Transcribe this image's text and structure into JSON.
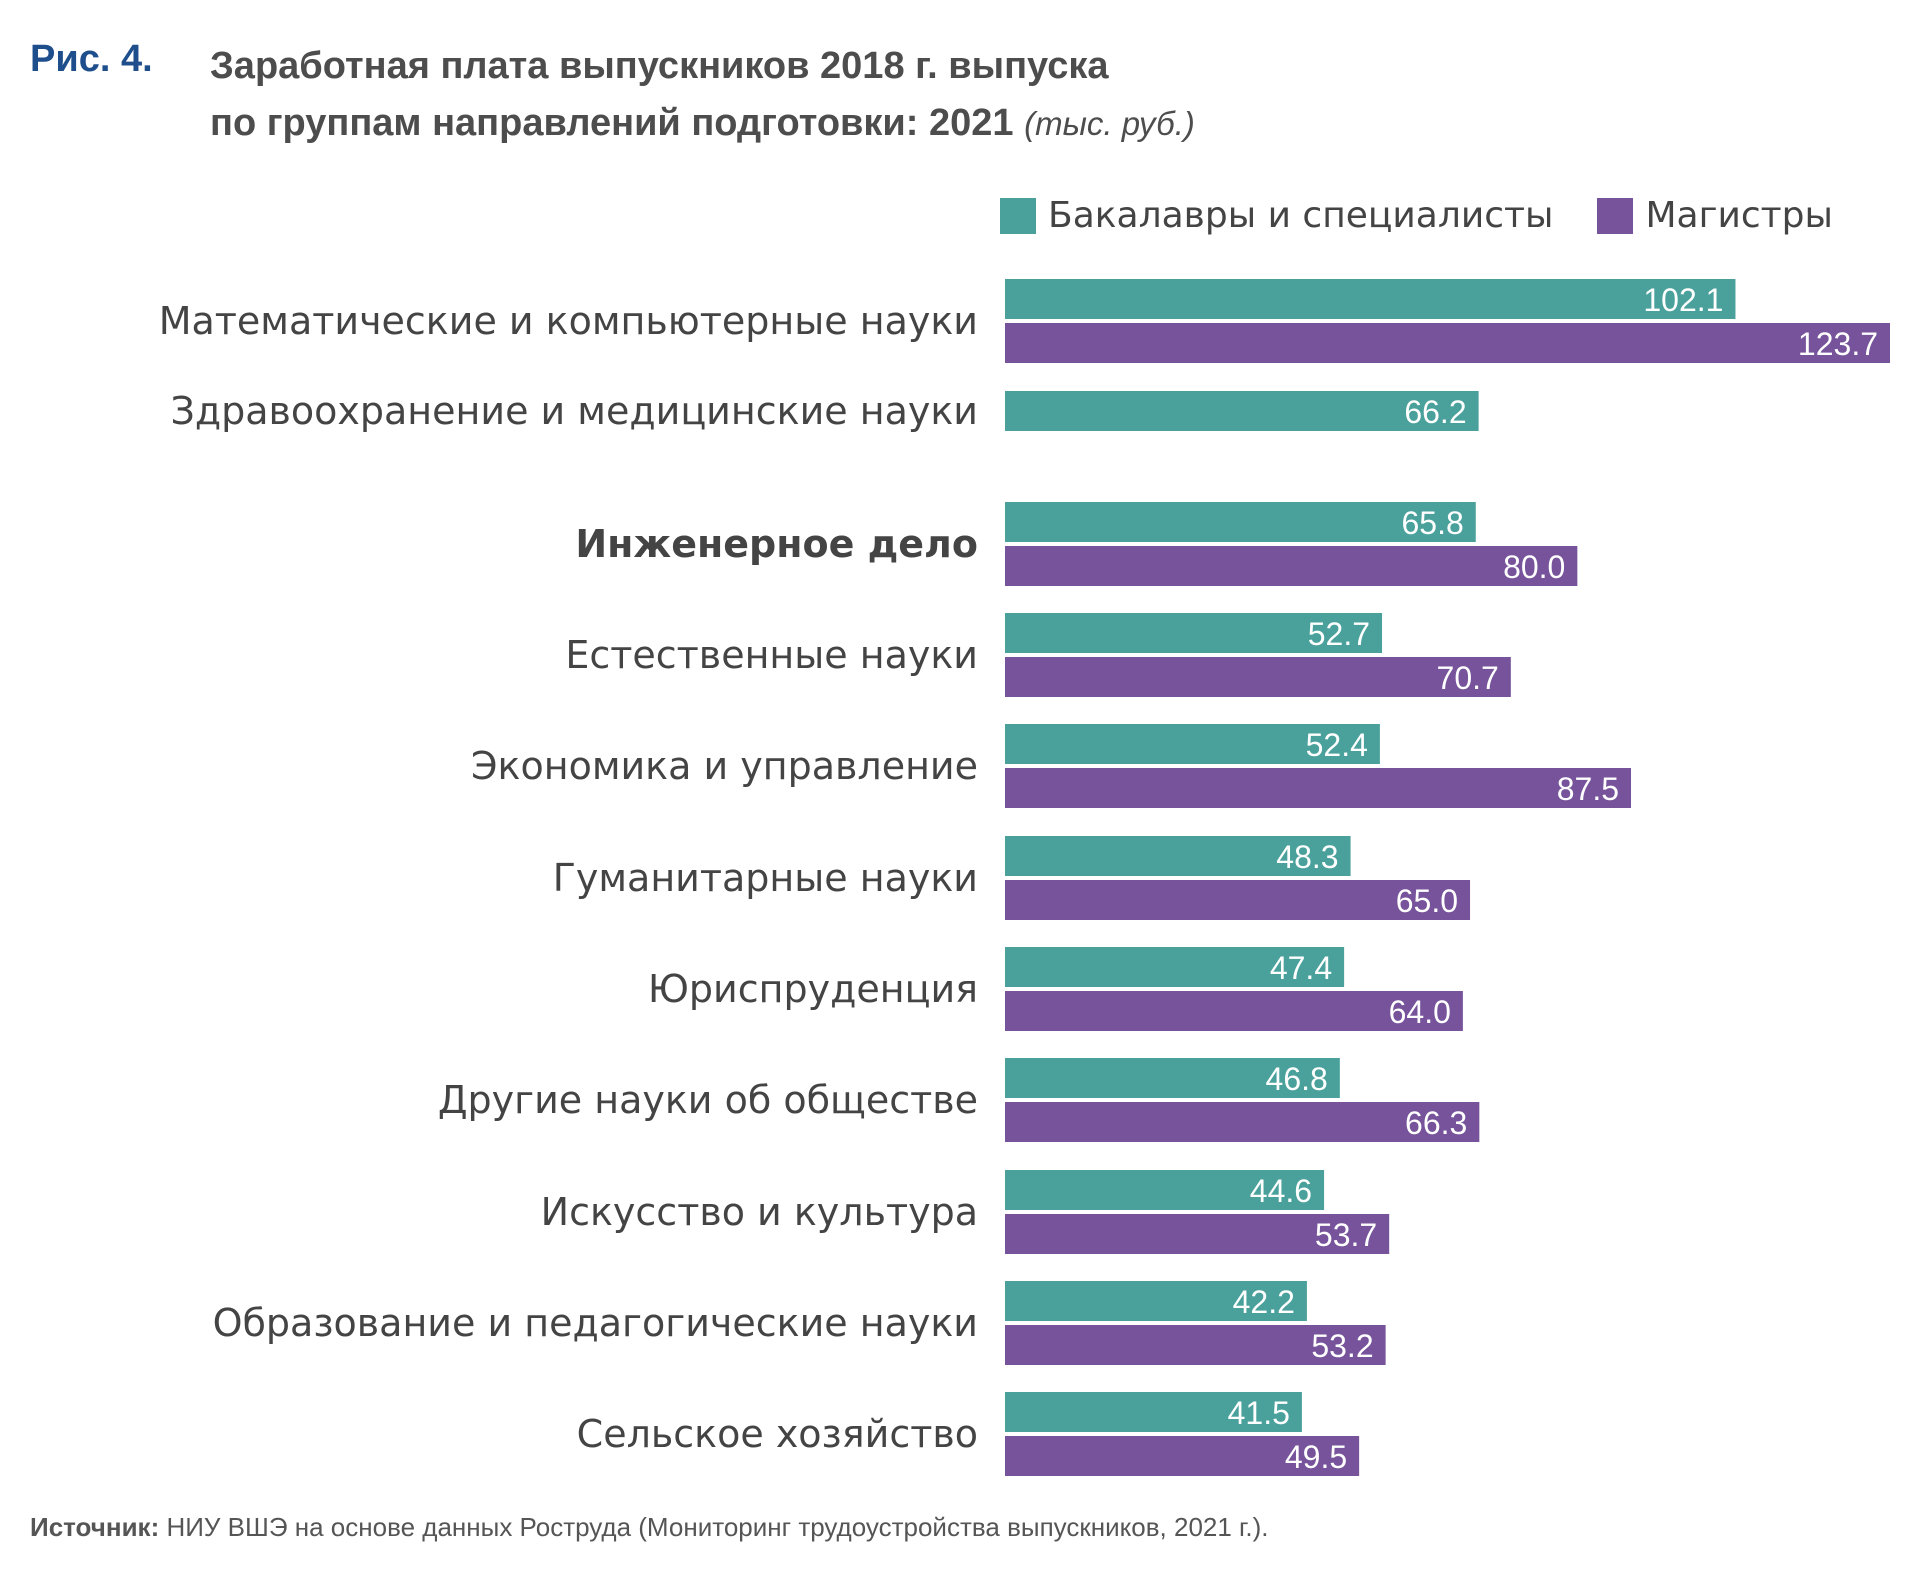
{
  "figure": {
    "number": "Рис. 4.",
    "title_line1": "Заработная плата выпускников 2018 г. выпуска",
    "title_line2": "по группам направлений подготовки: 2021",
    "units": "(тыс. руб.)"
  },
  "source": {
    "label": "Источник:",
    "text": "НИУ ВШЭ на основе данных Роструда (Мониторинг трудоустройства выпускников, 2021 г.)."
  },
  "chart_data": {
    "type": "bar",
    "orientation": "horizontal",
    "categories": [
      "Математические и компьютерные науки",
      "Здравоохранение и медицинские науки",
      "Инженерное дело",
      "Естественные науки",
      "Экономика и управление",
      "Гуманитарные науки",
      "Юриспруденция",
      "Другие науки об обществе",
      "Искусство и культура",
      "Образование и педагогические науки",
      "Сельское хозяйство"
    ],
    "highlighted_category": "Инженерное дело",
    "series": [
      {
        "name": "Бакалавры и специалисты",
        "color": "#4aa19c",
        "values": [
          102.1,
          66.2,
          65.8,
          52.7,
          52.4,
          48.3,
          47.4,
          46.8,
          44.6,
          42.2,
          41.5
        ],
        "labels": [
          "102.1",
          "66.2",
          "65.8",
          "52.7",
          "52.4",
          "48.3",
          "47.4",
          "46.8",
          "44.6",
          "42.2",
          "41.5"
        ]
      },
      {
        "name": "Магистры",
        "color": "#76539a",
        "values": [
          123.7,
          null,
          80.0,
          70.7,
          87.5,
          65.0,
          64.0,
          66.3,
          53.7,
          53.2,
          49.5
        ],
        "labels": [
          "123.7",
          null,
          "80.0",
          "70.7",
          "87.5",
          "65.0",
          "64.0",
          "66.3",
          "53.7",
          "53.2",
          "49.5"
        ]
      }
    ],
    "legend_position": "top-right",
    "grid": false,
    "xlim": [
      0,
      123.7
    ]
  }
}
